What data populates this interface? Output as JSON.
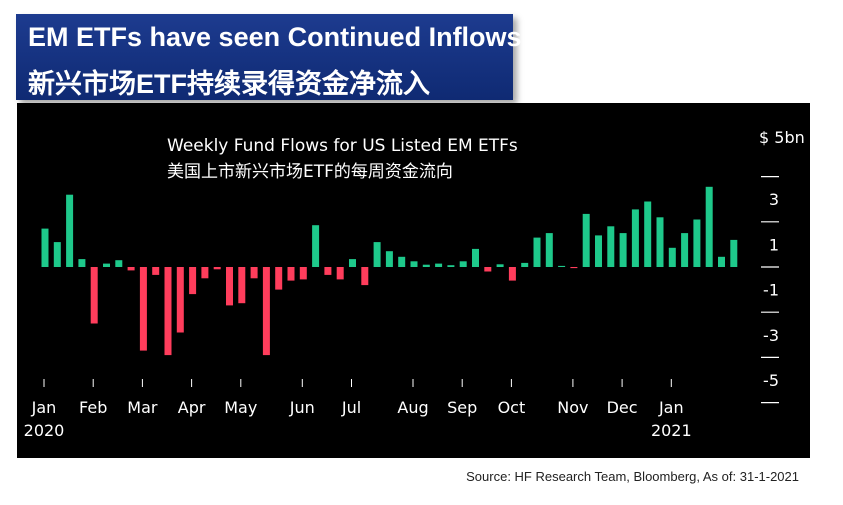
{
  "banner": {
    "title_en": "EM ETFs have seen Continued Inflows",
    "title_cn": "新兴市场ETF持续录得资金净流入"
  },
  "source": "Source: HF Research Team, Bloomberg, As of: 31-1-2021",
  "colors": {
    "inflow": "#1ec98b",
    "outflow": "#ff3d5c",
    "background": "#000000",
    "axis": "#ffffff"
  },
  "chart_data": {
    "type": "bar",
    "title": "Weekly Fund Flows for US Listed EM ETFs",
    "subtitle": "美国上市新兴市场ETF的每周资金流向",
    "unit_label": "$ 5bn",
    "ylim": [
      -5.5,
      5.5
    ],
    "y_ticks": [
      -5,
      -3,
      -1,
      1,
      3
    ],
    "y_tick_labels": [
      "-5",
      "-3",
      "-1",
      "1",
      "3"
    ],
    "x_tick_labels": [
      {
        "label": "Jan",
        "year": "2020",
        "week": 0.5
      },
      {
        "label": "Feb",
        "week": 4.5
      },
      {
        "label": "Mar",
        "week": 8.5
      },
      {
        "label": "Apr",
        "week": 12.5
      },
      {
        "label": "May",
        "week": 16.5
      },
      {
        "label": "Jun",
        "week": 21.5
      },
      {
        "label": "Jul",
        "week": 25.5
      },
      {
        "label": "Aug",
        "week": 30.5
      },
      {
        "label": "Sep",
        "week": 34.5
      },
      {
        "label": "Oct",
        "week": 38.5
      },
      {
        "label": "Nov",
        "week": 43.5
      },
      {
        "label": "Dec",
        "week": 47.5
      },
      {
        "label": "Jan",
        "year": "2021",
        "week": 51.5
      }
    ],
    "values": [
      1.7,
      1.1,
      3.2,
      0.35,
      -2.5,
      0.15,
      0.3,
      -0.15,
      -3.7,
      -0.35,
      -3.9,
      -2.9,
      -1.2,
      -0.5,
      -0.1,
      -1.7,
      -1.6,
      -0.5,
      -3.9,
      -1.0,
      -0.6,
      -0.55,
      1.85,
      -0.35,
      -0.55,
      0.35,
      -0.8,
      1.1,
      0.7,
      0.45,
      0.25,
      0.1,
      0.15,
      0.08,
      0.25,
      0.8,
      -0.2,
      0.12,
      -0.6,
      0.18,
      1.3,
      1.5,
      0.05,
      -0.05,
      2.35,
      1.4,
      1.8,
      1.5,
      2.55,
      2.9,
      2.2,
      0.85,
      1.5,
      2.1,
      3.55,
      0.45,
      1.2
    ]
  }
}
